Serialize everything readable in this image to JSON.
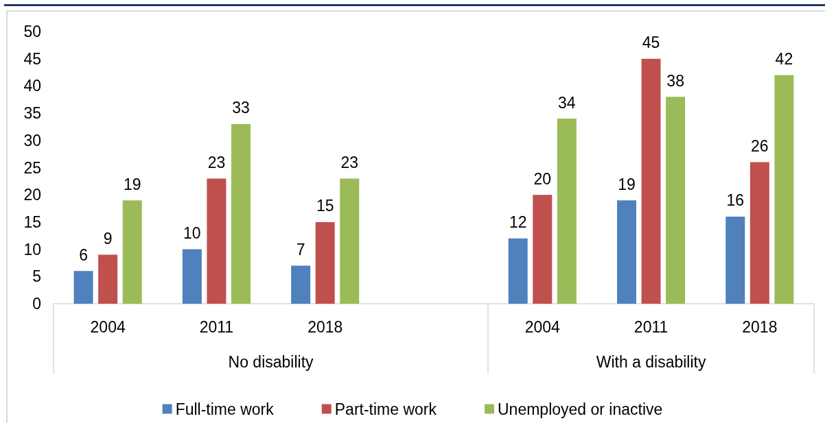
{
  "chart_data": {
    "type": "bar",
    "categories": [
      "2004",
      "2011",
      "2018",
      null,
      "2004",
      "2011",
      "2018"
    ],
    "series": [
      {
        "name": "Full-time work",
        "color": "#4f81bd",
        "values": [
          6,
          10,
          7,
          null,
          12,
          19,
          16
        ]
      },
      {
        "name": "Part-time work",
        "color": "#c0504d",
        "values": [
          9,
          23,
          15,
          null,
          20,
          45,
          26
        ]
      },
      {
        "name": "Unemployed or inactive",
        "color": "#9bbb59",
        "values": [
          19,
          33,
          23,
          null,
          34,
          38,
          42
        ]
      }
    ],
    "ylim": [
      0,
      50
    ],
    "yticks": [
      0,
      5,
      10,
      15,
      20,
      25,
      30,
      35,
      40,
      45,
      50
    ],
    "legend": "bottom",
    "data_labels": true,
    "annotations": [
      "No disability",
      "With a disability"
    ]
  }
}
